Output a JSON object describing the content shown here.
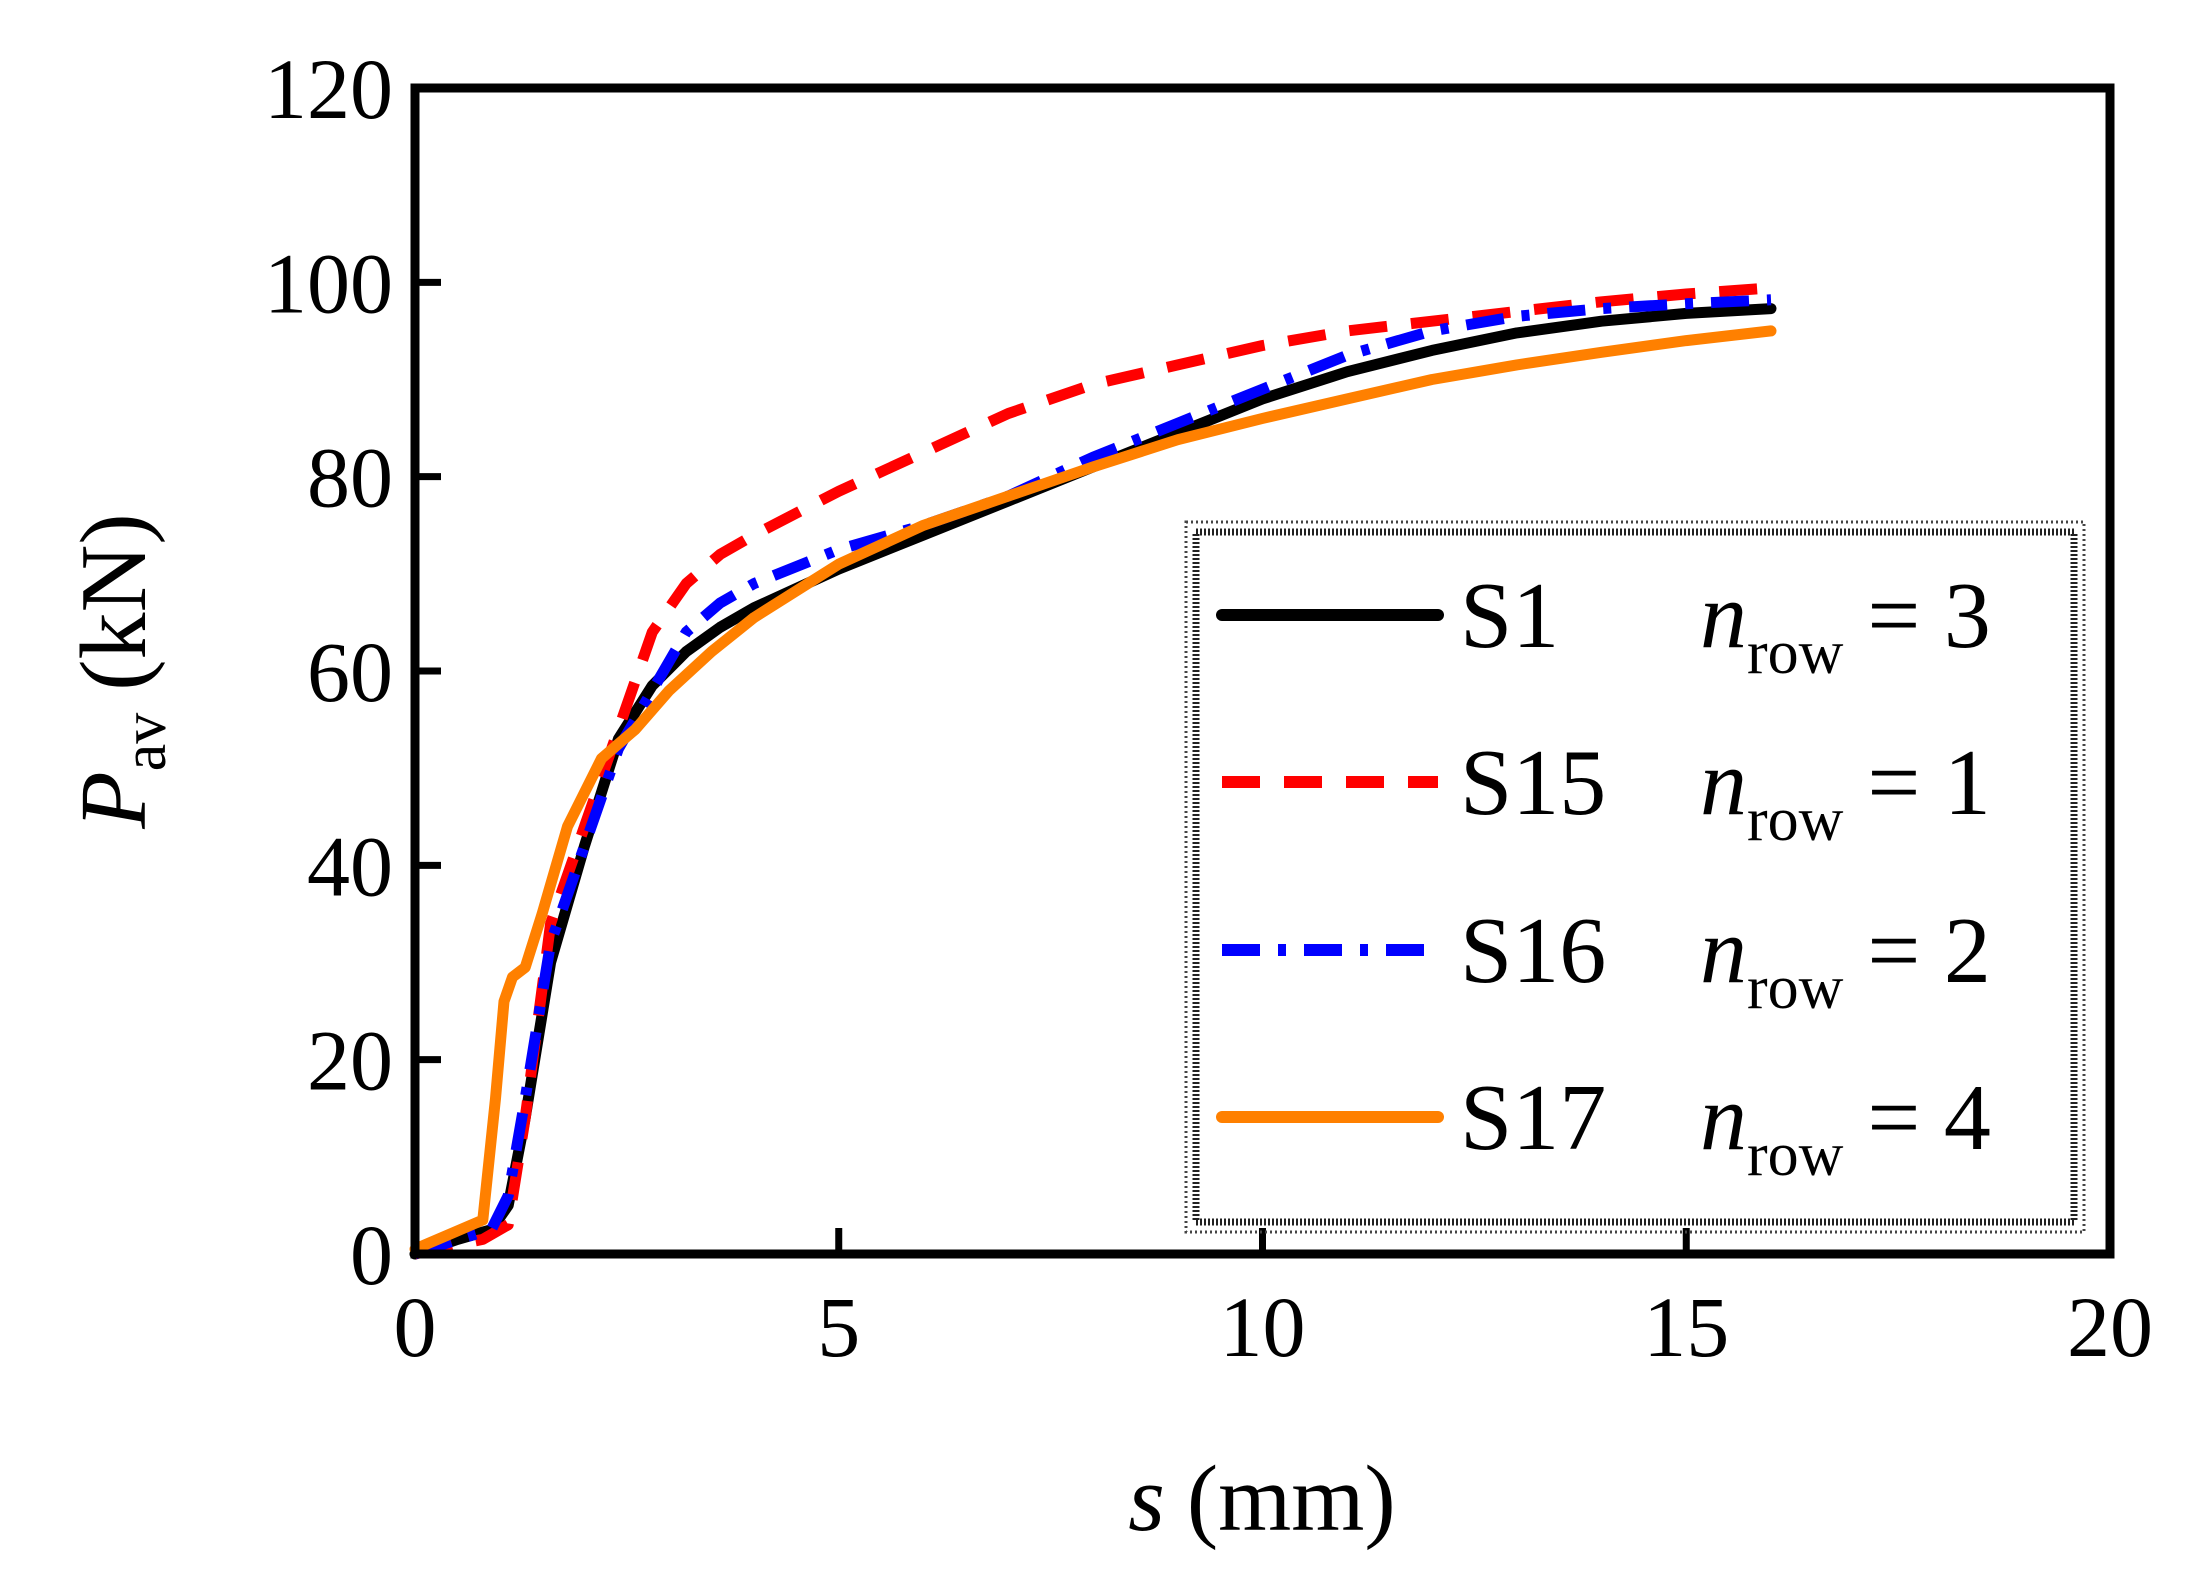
{
  "chart_data": {
    "type": "line",
    "title": "",
    "xlabel": {
      "var": "s",
      "unit": "(mm)"
    },
    "ylabel": {
      "var": "P",
      "sub": "av",
      "unit": "(kN)"
    },
    "xlim": [
      0,
      20
    ],
    "ylim": [
      0,
      120
    ],
    "xticks": [
      0,
      5,
      10,
      15,
      20
    ],
    "yticks": [
      0,
      20,
      40,
      60,
      80,
      100,
      120
    ],
    "grid": false,
    "legend_position": "bottom-right",
    "series": [
      {
        "name": "S1",
        "param": {
          "var": "n",
          "sub": "row",
          "eq": "= 3"
        },
        "color": "#000000",
        "style": "solid",
        "x": [
          0,
          0.5,
          0.9,
          1.1,
          1.3,
          1.6,
          2.0,
          2.4,
          2.8,
          3.2,
          3.6,
          4.0,
          5.0,
          6.0,
          7.0,
          8.0,
          9.0,
          10.0,
          11.0,
          12.0,
          13.0,
          14.0,
          15.0,
          16.0
        ],
        "y": [
          0,
          1.5,
          2.5,
          5,
          14,
          30,
          42,
          53,
          58.5,
          62,
          64.5,
          66.5,
          70.5,
          74,
          77.5,
          81,
          84.5,
          88,
          90.8,
          93,
          94.8,
          96,
          96.8,
          97.3
        ]
      },
      {
        "name": "S15",
        "param": {
          "var": "n",
          "sub": "row",
          "eq": "= 1"
        },
        "color": "#ff0000",
        "style": "dashed",
        "x": [
          0,
          0.5,
          0.8,
          1.1,
          1.3,
          1.6,
          2.0,
          2.4,
          2.8,
          3.2,
          3.6,
          4.0,
          5.0,
          6.0,
          7.0,
          8.0,
          9.0,
          10.0,
          11.0,
          12.0,
          13.0,
          14.0,
          15.0,
          16.1
        ],
        "y": [
          0,
          1,
          1.5,
          3,
          14,
          34,
          44,
          54,
          64,
          69,
          72,
          74,
          78.5,
          82.5,
          86.5,
          89.5,
          91.5,
          93.5,
          95,
          96,
          97,
          98,
          98.8,
          99.5
        ]
      },
      {
        "name": "S16",
        "param": {
          "var": "n",
          "sub": "row",
          "eq": "= 2"
        },
        "color": "#0000ff",
        "style": "dashdot",
        "x": [
          0,
          0.5,
          0.9,
          1.1,
          1.3,
          1.6,
          2.0,
          2.4,
          2.8,
          3.2,
          3.6,
          4.0,
          5.0,
          6.0,
          7.0,
          8.0,
          9.0,
          10.0,
          11.0,
          12.0,
          13.0,
          14.0,
          15.0,
          16.0
        ],
        "y": [
          0,
          1.5,
          2.5,
          6,
          16,
          32,
          42,
          52,
          58,
          64,
          67,
          69,
          72.5,
          75,
          78,
          82,
          85.5,
          89,
          92.5,
          95,
          96.5,
          97.3,
          97.8,
          98.2
        ]
      },
      {
        "name": "S17",
        "param": {
          "var": "n",
          "sub": "row",
          "eq": "= 4"
        },
        "color": "#ff8000",
        "style": "solid",
        "x": [
          0,
          0.4,
          0.8,
          0.95,
          1.05,
          1.15,
          1.3,
          1.5,
          1.8,
          2.2,
          2.6,
          3.0,
          3.5,
          4.0,
          5.0,
          6.0,
          7.0,
          8.0,
          9.0,
          10.0,
          11.0,
          12.0,
          13.0,
          14.0,
          15.0,
          16.0
        ],
        "y": [
          0.5,
          2,
          3.5,
          16,
          26,
          28.5,
          29.5,
          35,
          44,
          51,
          54,
          58,
          62,
          65.5,
          71,
          75,
          78,
          81,
          83.8,
          86,
          88,
          90,
          91.5,
          92.8,
          94,
          95
        ]
      }
    ]
  }
}
